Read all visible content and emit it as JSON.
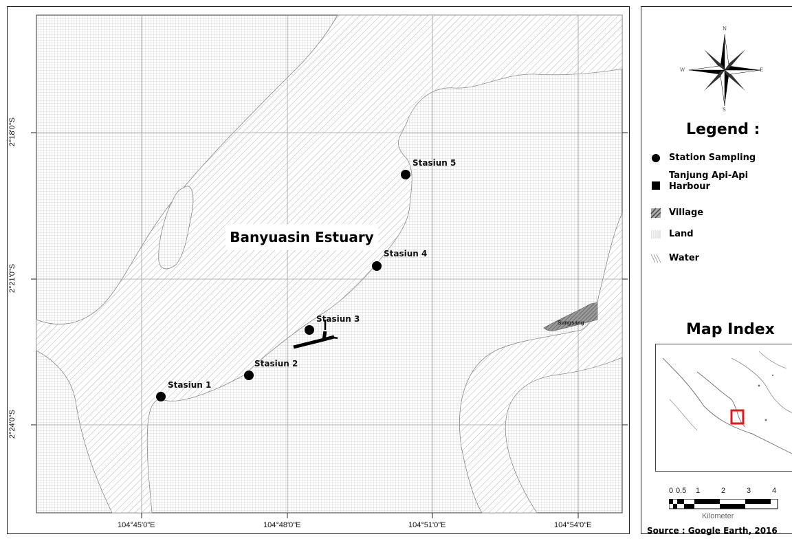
{
  "map": {
    "title": "Banyuasin Estuary",
    "village_label": "Sungsang",
    "lon_ticks": [
      "104°45'0\"E",
      "104°48'0\"E",
      "104°51'0\"E",
      "104°54'0\"E"
    ],
    "lat_ticks": [
      "2°18'0\"S",
      "2°21'0\"S",
      "2°24'0\"S"
    ],
    "stations": [
      {
        "label": "Stasiun 1"
      },
      {
        "label": "Stasiun 2"
      },
      {
        "label": "Stasiun 3"
      },
      {
        "label": "Stasiun 4"
      },
      {
        "label": "Stasiun 5"
      }
    ]
  },
  "compass": {
    "n": "N",
    "s": "S",
    "e": "E",
    "w": "W"
  },
  "legend": {
    "title": "Legend :",
    "items": [
      {
        "label": "Station Sampling",
        "icon": "circle-icon"
      },
      {
        "label": "Tanjung Api-Api Harbour",
        "icon": "square-icon"
      },
      {
        "label": "Village",
        "icon": "dense-hatch-icon"
      },
      {
        "label": "Land",
        "icon": "grid-icon"
      },
      {
        "label": "Water",
        "icon": "diagonal-hatch-icon"
      }
    ]
  },
  "map_index": {
    "title": "Map Index"
  },
  "scale_bar": {
    "ticks": [
      "0",
      "0.5",
      "1",
      "2",
      "3",
      "4"
    ],
    "unit": "Kilometer"
  },
  "source": "Source : Google Earth, 2016",
  "colors": {
    "marker": "#000000",
    "index_highlight": "#e01818",
    "village": "#777777"
  }
}
